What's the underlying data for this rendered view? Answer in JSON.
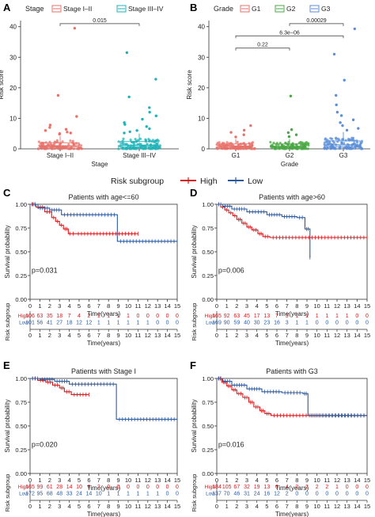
{
  "chart_data": [
    {
      "panel": "A",
      "type": "box",
      "legend_title": "Stage",
      "categories": [
        "Stage I–II",
        "Stage III–IV"
      ],
      "colors": [
        "#e8716a",
        "#1fb3b8"
      ],
      "xlabel": "Stage",
      "ylabel": "Risk score",
      "ylim": [
        0,
        42
      ],
      "yticks": [
        "0",
        "10",
        "20",
        "30",
        "40"
      ],
      "medians": [
        1.0,
        1.2
      ],
      "q1": [
        0.6,
        0.7
      ],
      "q3": [
        2.0,
        2.4
      ],
      "whisker_high": [
        4.2,
        5.0
      ],
      "outliers": [
        [
          39.5,
          17.5,
          10.6,
          7.8,
          7.0,
          6.4,
          6.0,
          5.5,
          5.2,
          5.0,
          4.8
        ],
        [
          31.5,
          22.8,
          17.0,
          13.5,
          12.0,
          10.8,
          9.7,
          8.6,
          8.0,
          7.3,
          6.6,
          6.0,
          5.6,
          5.2
        ]
      ],
      "comparisons": [
        {
          "label": "0.015",
          "from": 0,
          "to": 1,
          "y": 41
        }
      ]
    },
    {
      "panel": "B",
      "type": "box",
      "legend_title": "Grade",
      "categories": [
        "G1",
        "G2",
        "G3"
      ],
      "colors": [
        "#e8716a",
        "#4aa844",
        "#5b8fd8"
      ],
      "xlabel": "Grade",
      "ylabel": "Risk score",
      "ylim": [
        0,
        42
      ],
      "yticks": [
        "0",
        "10",
        "20",
        "30",
        "40"
      ],
      "medians": [
        0.9,
        0.8,
        1.3
      ],
      "q1": [
        0.5,
        0.5,
        0.7
      ],
      "q3": [
        1.6,
        1.6,
        2.6
      ],
      "whisker_high": [
        3.2,
        3.2,
        5.5
      ],
      "outliers": [
        [
          7.6,
          6.1,
          5.4,
          4.6,
          3.9
        ],
        [
          17.3,
          6.3,
          5.3,
          4.6,
          4.0
        ],
        [
          39.3,
          31.0,
          22.5,
          17.5,
          14.4,
          12.0,
          10.9,
          9.5,
          8.6,
          7.6,
          6.7,
          6.1
        ]
      ],
      "comparisons": [
        {
          "label": "0.00029",
          "from": 1,
          "to": 2,
          "y": 41
        },
        {
          "label": "6.3e−06",
          "from": 0,
          "to": 2,
          "y": 37
        },
        {
          "label": "0.22",
          "from": 0,
          "to": 1,
          "y": 33
        }
      ]
    },
    {
      "panel": "C",
      "type": "line",
      "step": true,
      "title": "Patients with age<=60",
      "p_value": "p=0.031",
      "xlabel": "Time(years)",
      "ylabel": "Survival probability",
      "xlim": [
        0,
        15
      ],
      "ylim": [
        0,
        1
      ],
      "xticks": [
        "0",
        "1",
        "2",
        "3",
        "4",
        "5",
        "6",
        "7",
        "8",
        "9",
        "10",
        "11",
        "12",
        "13",
        "14",
        "15"
      ],
      "yticks": [
        "0.00",
        "0.25",
        "0.50",
        "0.75",
        "1.00"
      ],
      "series": [
        {
          "name": "High",
          "x": [
            0,
            0.6,
            1.5,
            2.2,
            2.6,
            3.0,
            3.4,
            3.9,
            4.2,
            4.6,
            11.0
          ],
          "y": [
            1.0,
            0.97,
            0.92,
            0.86,
            0.82,
            0.78,
            0.74,
            0.69,
            0.69,
            0.69,
            0.69
          ]
        },
        {
          "name": "Low",
          "x": [
            0,
            0.8,
            2.0,
            3.2,
            8.9,
            15.0
          ],
          "y": [
            1.0,
            0.96,
            0.94,
            0.89,
            0.61,
            0.61
          ]
        }
      ],
      "risk_table": {
        "title": "Risk subgroup",
        "rows": [
          {
            "name": "High",
            "values": [
              "106",
              "63",
              "35",
              "18",
              "7",
              "4",
              "2",
              "1",
              "1",
              "1",
              "1",
              "0",
              "0",
              "0",
              "0",
              "0"
            ]
          },
          {
            "name": "Low",
            "values": [
              "101",
              "56",
              "41",
              "27",
              "18",
              "12",
              "12",
              "1",
              "1",
              "1",
              "1",
              "1",
              "1",
              "0",
              "0",
              "0"
            ]
          }
        ]
      }
    },
    {
      "panel": "D",
      "type": "line",
      "step": true,
      "title": "Patients with age>60",
      "p_value": "p=0.006",
      "xlabel": "Time(years)",
      "ylabel": "Survival probability",
      "xlim": [
        0,
        15
      ],
      "ylim": [
        0,
        1
      ],
      "xticks": [
        "0",
        "1",
        "2",
        "3",
        "4",
        "5",
        "6",
        "7",
        "8",
        "9",
        "10",
        "11",
        "12",
        "13",
        "14",
        "15"
      ],
      "yticks": [
        "0.00",
        "0.25",
        "0.50",
        "0.75",
        "1.00"
      ],
      "series": [
        {
          "name": "High",
          "x": [
            0,
            0.4,
            0.8,
            1.2,
            1.6,
            2.0,
            2.5,
            3.0,
            3.5,
            4.1,
            4.6,
            5.3,
            15.0
          ],
          "y": [
            1.0,
            0.97,
            0.94,
            0.91,
            0.88,
            0.84,
            0.8,
            0.76,
            0.73,
            0.69,
            0.66,
            0.65,
            0.65
          ]
        },
        {
          "name": "Low",
          "x": [
            0,
            0.6,
            1.5,
            3.0,
            5.0,
            6.5,
            8.0,
            8.8,
            9.3
          ],
          "y": [
            1.0,
            0.98,
            0.95,
            0.92,
            0.89,
            0.87,
            0.86,
            0.74,
            0.44
          ]
        }
      ],
      "risk_table": {
        "title": "Risk subgroup",
        "rows": [
          {
            "name": "High",
            "values": [
              "165",
              "92",
              "63",
              "45",
              "17",
              "13",
              "7",
              "3",
              "1",
              "1",
              "1",
              "1",
              "1",
              "1",
              "0",
              "0"
            ]
          },
          {
            "name": "Low",
            "values": [
              "169",
              "90",
              "59",
              "40",
              "30",
              "23",
              "16",
              "3",
              "1",
              "1",
              "0",
              "0",
              "0",
              "0",
              "0",
              "0"
            ]
          }
        ]
      }
    },
    {
      "panel": "E",
      "type": "line",
      "step": true,
      "title": "Patients with Stage I",
      "p_value": "p=0.020",
      "xlabel": "Time(years)",
      "ylabel": "Survival probability",
      "xlim": [
        0,
        15
      ],
      "ylim": [
        0,
        1
      ],
      "xticks": [
        "0",
        "1",
        "2",
        "3",
        "4",
        "5",
        "6",
        "7",
        "8",
        "9",
        "10",
        "11",
        "12",
        "13",
        "14",
        "15"
      ],
      "yticks": [
        "0.00",
        "0.25",
        "0.50",
        "0.75",
        "1.00"
      ],
      "series": [
        {
          "name": "High",
          "x": [
            0,
            0.8,
            1.6,
            2.3,
            3.0,
            3.5,
            4.2,
            6.0
          ],
          "y": [
            1.0,
            0.98,
            0.96,
            0.93,
            0.9,
            0.86,
            0.83,
            0.83
          ]
        },
        {
          "name": "Low",
          "x": [
            0,
            1.0,
            2.5,
            4.0,
            8.8,
            15.0
          ],
          "y": [
            1.0,
            0.99,
            0.97,
            0.94,
            0.57,
            0.57
          ]
        }
      ],
      "risk_table": {
        "title": "Risk subgroup",
        "rows": [
          {
            "name": "High",
            "values": [
              "165",
              "99",
              "61",
              "28",
              "14",
              "10",
              "6",
              "2",
              "0",
              "0",
              "0",
              "0",
              "0",
              "0",
              "0",
              "0"
            ]
          },
          {
            "name": "Low",
            "values": [
              "172",
              "95",
              "68",
              "48",
              "33",
              "24",
              "14",
              "10",
              "1",
              "1",
              "1",
              "1",
              "1",
              "1",
              "0",
              "0"
            ]
          }
        ]
      }
    },
    {
      "panel": "F",
      "type": "line",
      "step": true,
      "title": "Patients with G3",
      "p_value": "p=0.016",
      "xlabel": "Time(years)",
      "ylabel": "Survival probability",
      "xlim": [
        0,
        15
      ],
      "ylim": [
        0,
        1
      ],
      "xticks": [
        "0",
        "1",
        "2",
        "3",
        "4",
        "5",
        "6",
        "7",
        "8",
        "9",
        "10",
        "11",
        "12",
        "13",
        "14",
        "15"
      ],
      "yticks": [
        "0.00",
        "0.25",
        "0.50",
        "0.75",
        "1.00"
      ],
      "series": [
        {
          "name": "High",
          "x": [
            0,
            0.5,
            1.0,
            1.5,
            2.0,
            2.6,
            3.2,
            3.7,
            4.3,
            4.8,
            5.4,
            15.0
          ],
          "y": [
            1.0,
            0.96,
            0.92,
            0.88,
            0.84,
            0.8,
            0.75,
            0.7,
            0.66,
            0.63,
            0.61,
            0.61
          ]
        },
        {
          "name": "Low",
          "x": [
            0,
            0.6,
            1.5,
            3.0,
            4.5,
            6.5,
            8.6,
            9.1,
            15.0
          ],
          "y": [
            1.0,
            0.97,
            0.93,
            0.89,
            0.86,
            0.85,
            0.84,
            0.61,
            0.61
          ]
        }
      ],
      "risk_table": {
        "title": "Risk subgroup",
        "rows": [
          {
            "name": "High",
            "values": [
              "184",
              "105",
              "67",
              "32",
              "19",
              "13",
              "6",
              "4",
              "2",
              "2",
              "2",
              "2",
              "1",
              "0",
              "0",
              "0"
            ]
          },
          {
            "name": "Low",
            "values": [
              "137",
              "70",
              "46",
              "31",
              "24",
              "16",
              "12",
              "2",
              "0",
              "0",
              "0",
              "0",
              "0",
              "0",
              "0",
              "0"
            ]
          }
        ]
      }
    }
  ],
  "risk_legend": {
    "title": "Risk subgroup",
    "items": [
      "High",
      "Low"
    ],
    "colors": [
      "#d7191c",
      "#2c5aa0"
    ]
  }
}
